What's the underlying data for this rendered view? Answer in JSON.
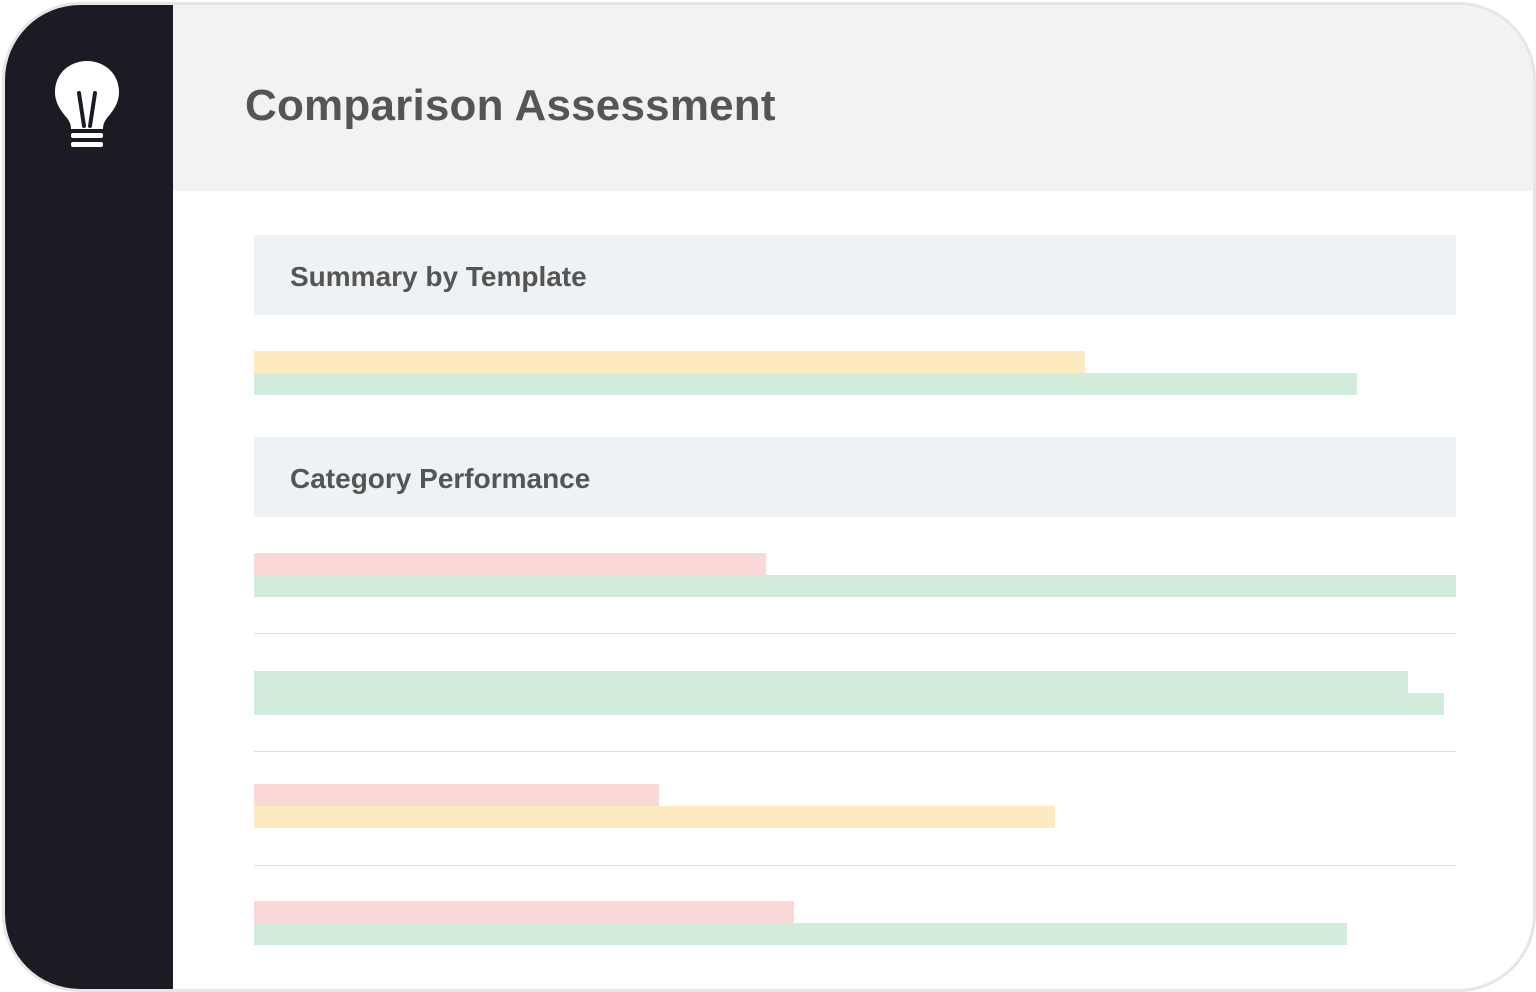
{
  "app": {
    "logo_icon": "lightbulb-icon",
    "title": "Comparison Assessment"
  },
  "colors": {
    "sidebar": "#1b1b24",
    "header_bg": "#f2f2f2",
    "section_bg": "#eef2f5",
    "title_text": "#555555",
    "yellow": "#fdeac0",
    "green": "#d2ecdc",
    "red": "#fad8d8"
  },
  "sections": [
    {
      "title": "Summary by Template",
      "rows": [
        [
          {
            "color": "yellow",
            "value": 0.691
          },
          {
            "color": "green",
            "value": 0.918
          }
        ]
      ]
    },
    {
      "title": "Category Performance",
      "rows": [
        [
          {
            "color": "red",
            "value": 0.426
          },
          {
            "color": "green",
            "value": 1.0
          }
        ],
        [
          {
            "color": "green",
            "value": 0.96
          },
          {
            "color": "green",
            "value": 0.99
          }
        ],
        [
          {
            "color": "red",
            "value": 0.337
          },
          {
            "color": "yellow",
            "value": 0.666
          }
        ],
        [
          {
            "color": "red",
            "value": 0.449
          },
          {
            "color": "green",
            "value": 0.909
          }
        ]
      ]
    }
  ]
}
